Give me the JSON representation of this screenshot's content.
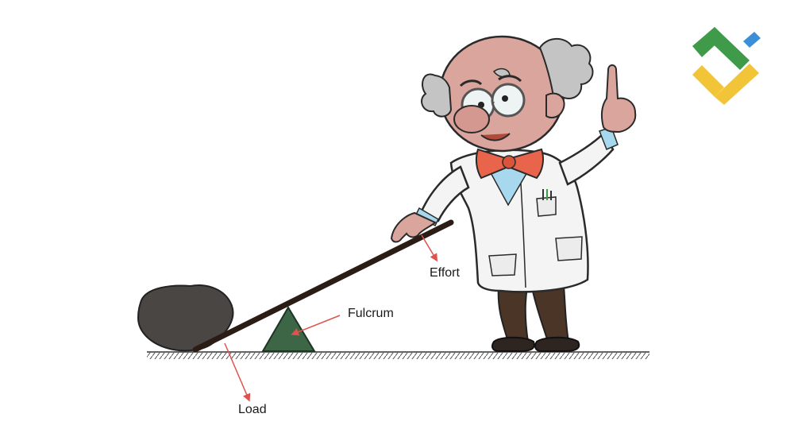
{
  "labels": {
    "effort": "Effort",
    "fulcrum": "Fulcrum",
    "load": "Load"
  },
  "colors": {
    "arrow": "#e0514d",
    "rock": "#4a4643",
    "fulcrum": "#3d6647",
    "lever": "#2b1d16",
    "ground": "#555555",
    "logo_green": "#3f9a4a",
    "logo_blue": "#3a8fd6",
    "logo_yellow": "#f2c437"
  },
  "icons": {
    "logo": "brand-logo-icon",
    "scientist": "scientist-illustration"
  }
}
